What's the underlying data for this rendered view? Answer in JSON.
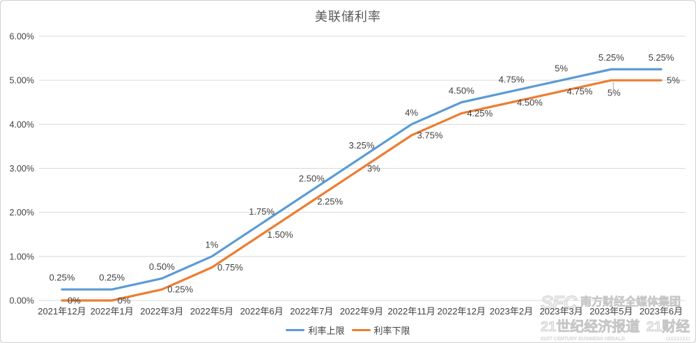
{
  "chart_data": {
    "type": "line",
    "title": "美联储利率",
    "categories": [
      "2021年12月",
      "2022年1月",
      "2022年3月",
      "2022年5月",
      "2022年6月",
      "2022年7月",
      "2022年9月",
      "2022年11月",
      "2022年12月",
      "2023年2月",
      "2023年3月",
      "2023年5月",
      "2023年6月"
    ],
    "series": [
      {
        "name": "利率上限",
        "color": "#5B9BD5",
        "values": [
          0.25,
          0.25,
          0.5,
          1,
          1.75,
          2.5,
          3.25,
          4,
          4.5,
          4.75,
          5,
          5.25,
          5.25
        ],
        "labels": [
          "0.25%",
          "0.25%",
          "0.50%",
          "1%",
          "1.75%",
          "2.50%",
          "3.25%",
          "4%",
          "4.50%",
          "4.75%",
          "5%",
          "5.25%",
          "5.25%"
        ],
        "label_placement": "above"
      },
      {
        "name": "利率下限",
        "color": "#ED7D31",
        "values": [
          0,
          0,
          0.25,
          0.75,
          1.5,
          2.25,
          3,
          3.75,
          4.25,
          4.5,
          4.75,
          5,
          5
        ],
        "labels": [
          "0%",
          "0%",
          "0.25%",
          "0.75%",
          "1.50%",
          "2.25%",
          "3%",
          "3.75%",
          "4.25%",
          "4.50%",
          "4.75%",
          "5%",
          "5%"
        ],
        "label_placement": "right",
        "label_overrides": {
          "11": "below-leader"
        }
      }
    ],
    "ylim": [
      0,
      6
    ],
    "ytick_labels": [
      "0.00%",
      "1.00%",
      "2.00%",
      "3.00%",
      "4.00%",
      "5.00%",
      "6.00%"
    ],
    "grid": true,
    "legend_position": "bottom",
    "colors": {
      "grid": "#d9d9d9",
      "axis_text": "#404040",
      "title_text": "#595959",
      "leader_line": "#a6a6a6"
    }
  },
  "watermark": {
    "logo": "SFC",
    "group_name": "南方财经全媒体集团",
    "brand_left": "21世纪经济报道",
    "brand_right": "21财经",
    "english_line": "21ST CENTURY BUSINESS HERALD",
    "small_marks": "□□□□□□□□"
  }
}
